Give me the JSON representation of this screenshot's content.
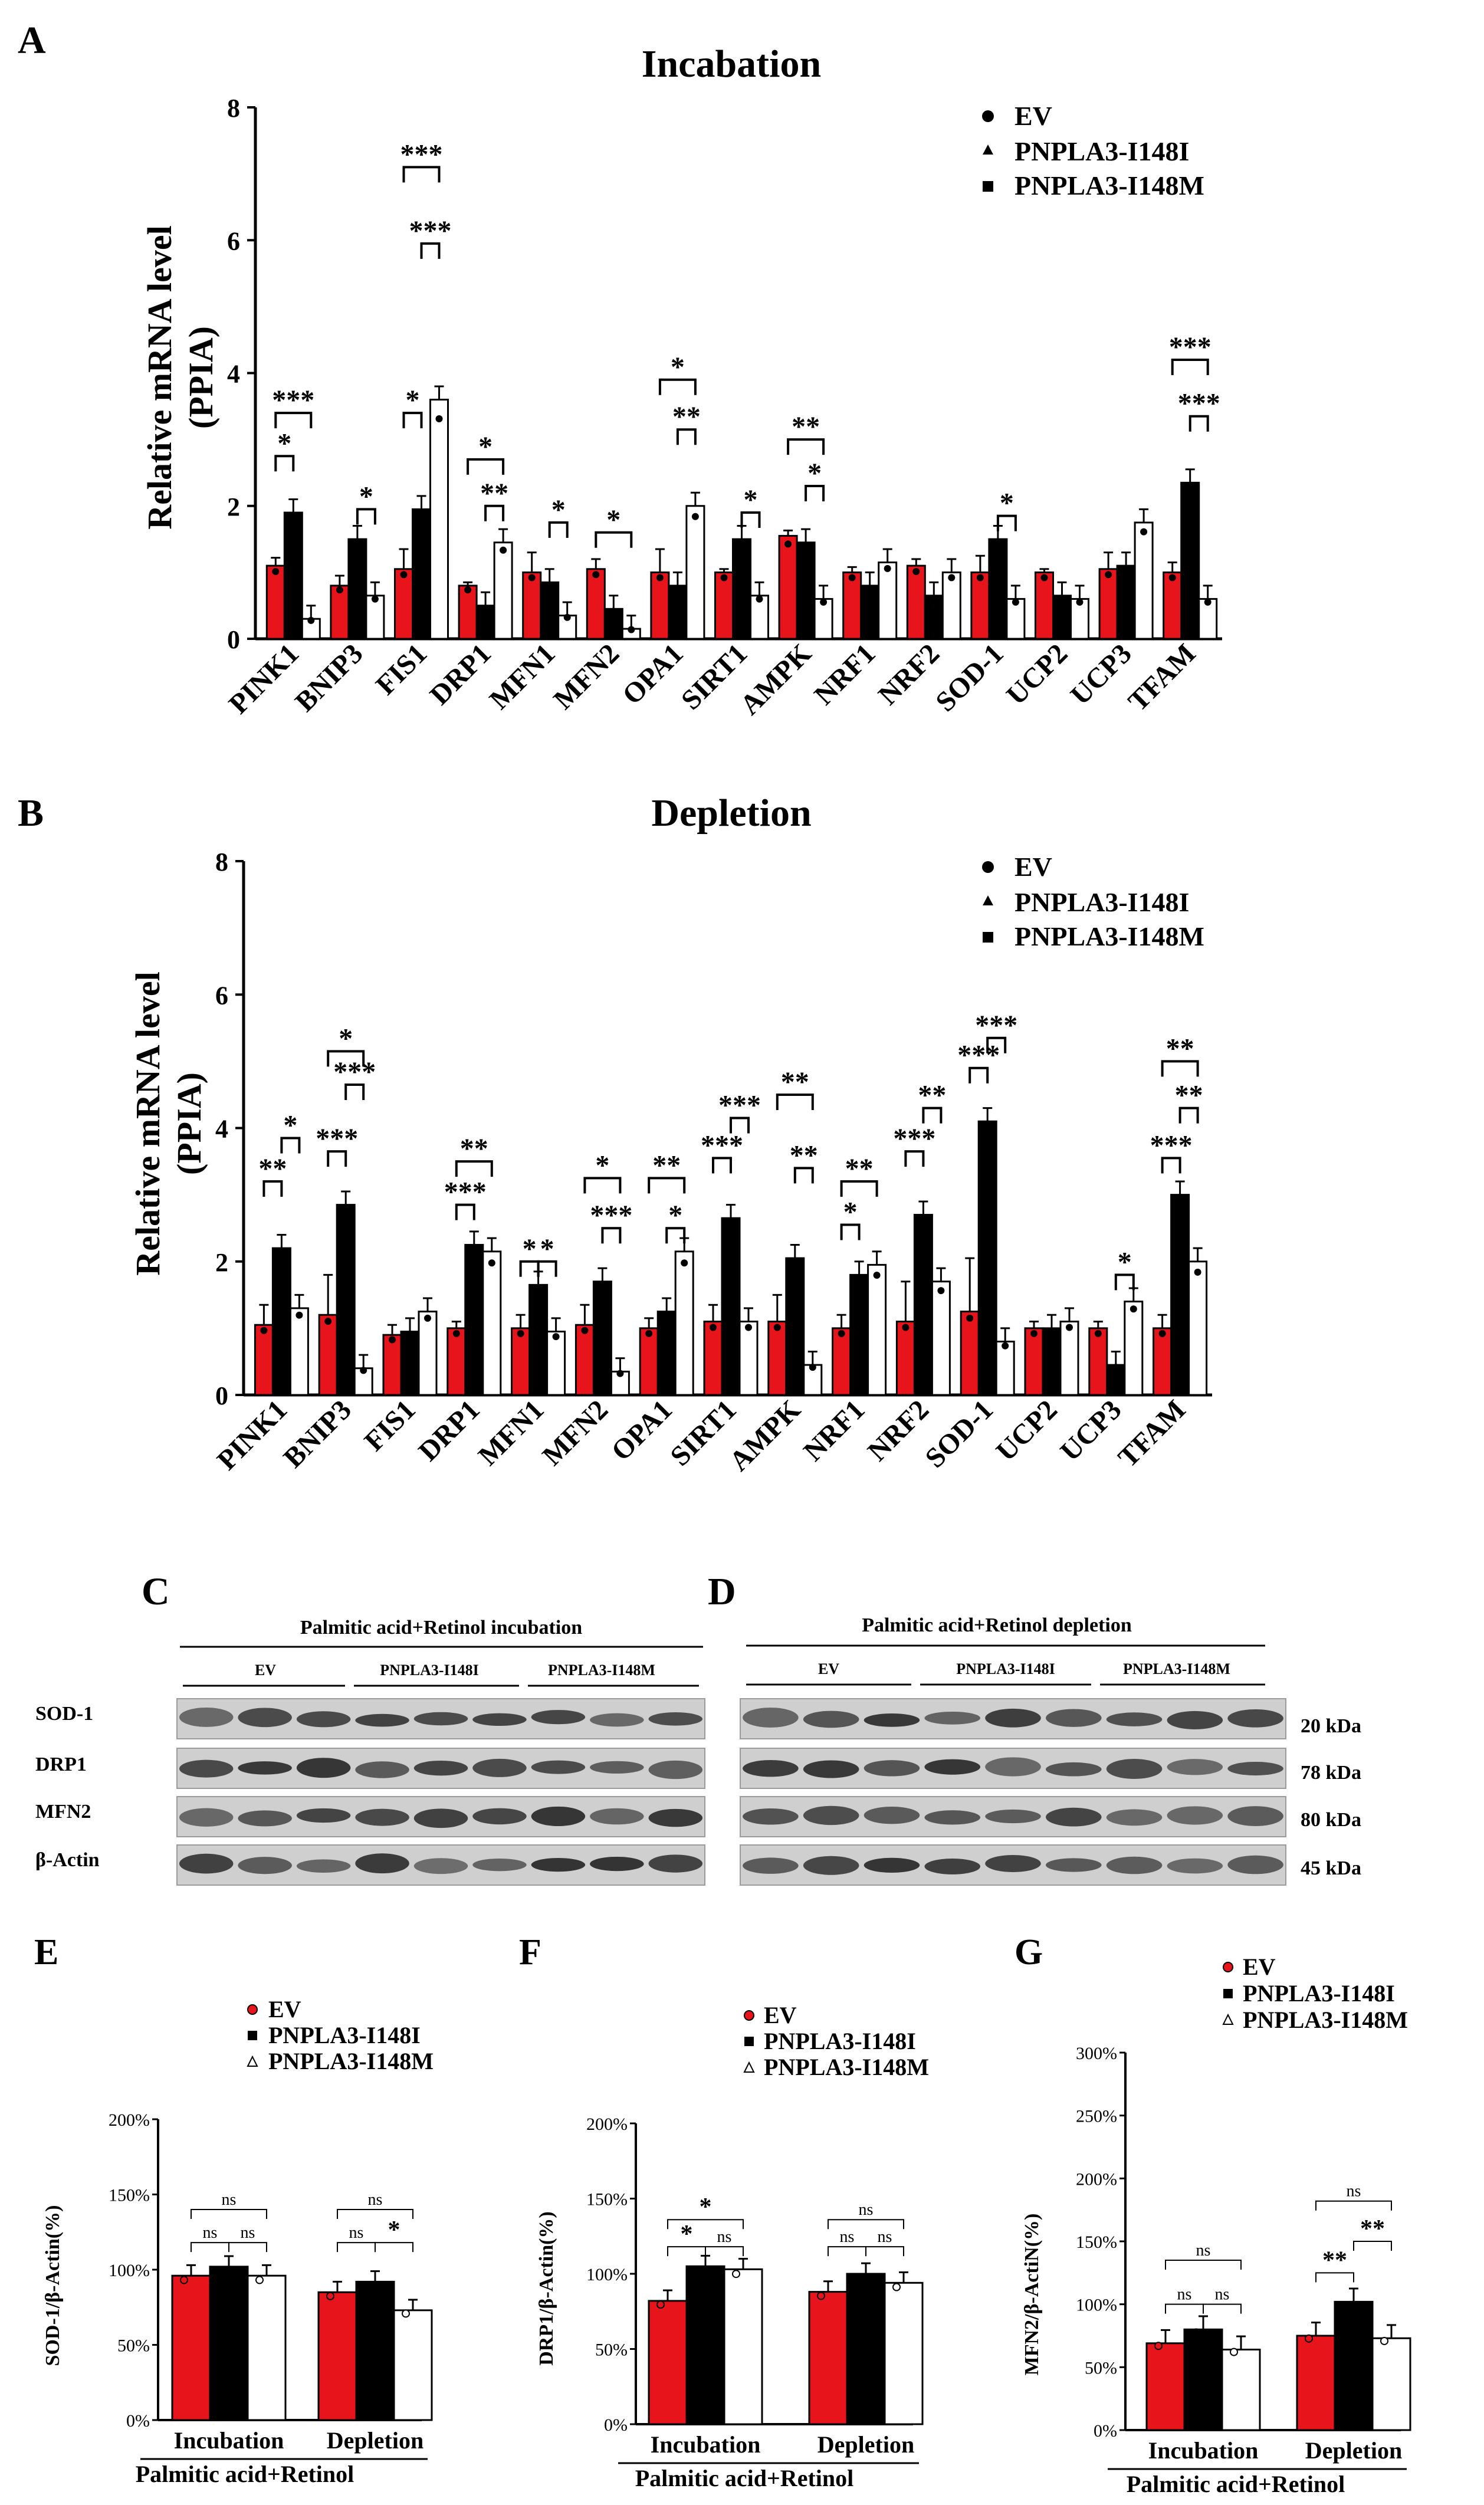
{
  "panel_letters": {
    "A": "A",
    "B": "B",
    "C": "C",
    "D": "D",
    "E": "E",
    "F": "F",
    "G": "G"
  },
  "legend_labels": [
    "EV",
    "PNPLA3-I148I",
    "PNPLA3-I148M"
  ],
  "colors": {
    "ev": "#e8141b",
    "i148i": "#000000",
    "i148m": "#ffffff",
    "axis": "#000000"
  },
  "chart_data": [
    {
      "id": "A",
      "type": "bar",
      "title": "Incabation",
      "ylabel_line1": "Relative mRNA level",
      "ylabel_line2": "(PPIA)",
      "ylim": [
        0,
        8
      ],
      "yticks": [
        0,
        2,
        4,
        6,
        8
      ],
      "categories": [
        "PINK1",
        "BNIP3",
        "FIS1",
        "DRP1",
        "MFN1",
        "MFN2",
        "OPA1",
        "SIRT1",
        "AMPK",
        "NRF1",
        "NRF2",
        "SOD-1",
        "UCP2",
        "UCP3",
        "TFAM"
      ],
      "series": [
        {
          "name": "EV",
          "values": [
            1.1,
            0.8,
            1.05,
            0.8,
            1.0,
            1.05,
            1.0,
            1.0,
            1.55,
            1.0,
            1.1,
            1.0,
            1.0,
            1.05,
            1.0
          ],
          "errors": [
            0.12,
            0.15,
            0.3,
            0.05,
            0.3,
            0.15,
            0.35,
            0.05,
            0.08,
            0.08,
            0.1,
            0.25,
            0.05,
            0.25,
            0.15
          ]
        },
        {
          "name": "PNPLA3-I148I",
          "values": [
            1.9,
            1.5,
            1.95,
            0.5,
            0.85,
            0.45,
            0.8,
            1.5,
            1.45,
            0.8,
            0.65,
            1.5,
            0.65,
            1.1,
            2.35
          ]
        },
        {
          "name": "PNPLA3-I148M",
          "values": [
            0.3,
            0.65,
            3.6,
            1.45,
            0.35,
            0.15,
            2.0,
            0.65,
            0.6,
            1.15,
            1.0,
            0.6,
            0.6,
            1.75,
            0.6
          ]
        }
      ],
      "annotations": [
        {
          "text": "*",
          "cat": 0,
          "a": 0,
          "b": 1,
          "y": 2.75
        },
        {
          "text": "***",
          "cat": 0,
          "a": 0,
          "b": 2,
          "y": 3.4
        },
        {
          "text": "*",
          "cat": 1,
          "a": 1,
          "b": 2,
          "y": 1.95
        },
        {
          "text": "*",
          "cat": 2,
          "a": 0,
          "b": 1,
          "y": 3.4
        },
        {
          "text": "***",
          "cat": 2,
          "a": 0,
          "b": 2,
          "y": 7.1
        },
        {
          "text": "***",
          "cat": 2,
          "a": 1,
          "b": 2,
          "y": 5.95
        },
        {
          "text": "*",
          "cat": 3,
          "a": 0,
          "b": 2,
          "y": 2.7
        },
        {
          "text": "**",
          "cat": 3,
          "a": 1,
          "b": 2,
          "y": 2.0
        },
        {
          "text": "*",
          "cat": 4,
          "a": 1,
          "b": 2,
          "y": 1.75
        },
        {
          "text": "*",
          "cat": 5,
          "a": 0,
          "b": 2,
          "y": 1.6
        },
        {
          "text": "*",
          "cat": 6,
          "a": 0,
          "b": 2,
          "y": 3.9
        },
        {
          "text": "**",
          "cat": 6,
          "a": 1,
          "b": 2,
          "y": 3.15
        },
        {
          "text": "*",
          "cat": 7,
          "a": 1,
          "b": 2,
          "y": 1.9
        },
        {
          "text": "**",
          "cat": 8,
          "a": 0,
          "b": 2,
          "y": 3.0
        },
        {
          "text": "*",
          "cat": 8,
          "a": 1,
          "b": 2,
          "y": 2.3
        },
        {
          "text": "*",
          "cat": 11,
          "a": 1,
          "b": 2,
          "y": 1.85
        },
        {
          "text": "***",
          "cat": 14,
          "a": 0,
          "b": 2,
          "y": 4.2
        },
        {
          "text": "***",
          "cat": 14,
          "a": 1,
          "b": 2,
          "y": 3.35
        }
      ]
    },
    {
      "id": "B",
      "type": "bar",
      "title": "Depletion",
      "ylabel_line1": "Relative mRNA level",
      "ylabel_line2": "(PPIA)",
      "ylim": [
        0,
        8
      ],
      "yticks": [
        0,
        2,
        4,
        6,
        8
      ],
      "categories": [
        "PINK1",
        "BNIP3",
        "FIS1",
        "DRP1",
        "MFN1",
        "MFN2",
        "OPA1",
        "SIRT1",
        "AMPK",
        "NRF1",
        "NRF2",
        "SOD-1",
        "UCP2",
        "UCP3",
        "TFAM"
      ],
      "series": [
        {
          "name": "EV",
          "values": [
            1.05,
            1.2,
            0.9,
            1.0,
            1.0,
            1.05,
            1.0,
            1.1,
            1.1,
            1.0,
            1.1,
            1.25,
            1.0,
            1.0,
            1.0
          ],
          "errors": [
            0.3,
            0.6,
            0.15,
            0.1,
            0.2,
            0.3,
            0.15,
            0.25,
            0.4,
            0.2,
            0.6,
            0.8,
            0.1,
            0.1,
            0.2
          ]
        },
        {
          "name": "PNPLA3-I148I",
          "values": [
            2.2,
            2.85,
            0.95,
            2.25,
            1.65,
            1.7,
            1.25,
            2.65,
            2.05,
            1.8,
            2.7,
            4.1,
            1.0,
            0.45,
            3.0
          ]
        },
        {
          "name": "PNPLA3-I148M",
          "values": [
            1.3,
            0.4,
            1.25,
            2.15,
            0.95,
            0.35,
            2.15,
            1.1,
            0.45,
            1.95,
            1.7,
            0.8,
            1.1,
            1.4,
            2.0
          ]
        }
      ],
      "annotations": [
        {
          "text": "**",
          "cat": 0,
          "a": 0,
          "b": 1,
          "y": 3.2
        },
        {
          "text": "*",
          "cat": 0,
          "a": 1,
          "b": 2,
          "y": 3.85
        },
        {
          "text": "***",
          "cat": 1,
          "a": 0,
          "b": 1,
          "y": 3.65
        },
        {
          "text": "***",
          "cat": 1,
          "a": 1,
          "b": 2,
          "y": 4.65
        },
        {
          "text": "*",
          "cat": 1,
          "a": 0,
          "b": 2,
          "y": 5.15
        },
        {
          "text": "***",
          "cat": 3,
          "a": 0,
          "b": 1,
          "y": 2.85
        },
        {
          "text": "**",
          "cat": 3,
          "a": 0,
          "b": 2,
          "y": 3.5
        },
        {
          "text": "*",
          "cat": 4,
          "a": 0,
          "b": 1,
          "y": 2.0
        },
        {
          "text": "*",
          "cat": 4,
          "a": 1,
          "b": 2,
          "y": 2.0
        },
        {
          "text": "***",
          "cat": 5,
          "a": 1,
          "b": 2,
          "y": 2.5
        },
        {
          "text": "*",
          "cat": 5,
          "a": 0,
          "b": 2,
          "y": 3.25
        },
        {
          "text": "**",
          "cat": 6,
          "a": 0,
          "b": 2,
          "y": 3.25
        },
        {
          "text": "*",
          "cat": 6,
          "a": 1,
          "b": 2,
          "y": 2.5
        },
        {
          "text": "***",
          "cat": 7,
          "a": 0,
          "b": 1,
          "y": 3.55
        },
        {
          "text": "***",
          "cat": 7,
          "a": 1,
          "b": 2,
          "y": 4.15
        },
        {
          "text": "**",
          "cat": 8,
          "a": 0,
          "b": 2,
          "y": 4.5
        },
        {
          "text": "**",
          "cat": 8,
          "a": 1,
          "b": 2,
          "y": 3.4
        },
        {
          "text": "*",
          "cat": 9,
          "a": 0,
          "b": 1,
          "y": 2.55
        },
        {
          "text": "**",
          "cat": 9,
          "a": 0,
          "b": 2,
          "y": 3.2
        },
        {
          "text": "***",
          "cat": 10,
          "a": 0,
          "b": 1,
          "y": 3.65
        },
        {
          "text": "**",
          "cat": 10,
          "a": 1,
          "b": 2,
          "y": 4.3
        },
        {
          "text": "***",
          "cat": 11,
          "a": 0,
          "b": 1,
          "y": 4.9
        },
        {
          "text": "***",
          "cat": 11,
          "a": 1,
          "b": 2,
          "y": 5.35
        },
        {
          "text": "*",
          "cat": 13,
          "a": 1,
          "b": 2,
          "y": 1.8
        },
        {
          "text": "***",
          "cat": 14,
          "a": 0,
          "b": 1,
          "y": 3.55
        },
        {
          "text": "**",
          "cat": 14,
          "a": 1,
          "b": 2,
          "y": 4.3
        },
        {
          "text": "**",
          "cat": 14,
          "a": 0,
          "b": 2,
          "y": 5.0
        }
      ]
    },
    {
      "id": "E",
      "type": "bar",
      "ylabel": "SOD-1/β-Actin(%)",
      "ylim": [
        0,
        200
      ],
      "yticks": [
        "0%",
        "50%",
        "100%",
        "150%",
        "200%"
      ],
      "tick_values": [
        0,
        50,
        100,
        150,
        200
      ],
      "categories": [
        "Incubation",
        "Depletion"
      ],
      "xlabel": "Palmitic acid+Retinol",
      "series": [
        {
          "name": "EV",
          "values": [
            96,
            85
          ]
        },
        {
          "name": "PNPLA3-I148I",
          "values": [
            102,
            92
          ]
        },
        {
          "name": "PNPLA3-I148M",
          "values": [
            96,
            73
          ]
        }
      ],
      "annotations": [
        {
          "text": "ns",
          "cat": 0,
          "a": 0,
          "b": 1,
          "y": 118
        },
        {
          "text": "ns",
          "cat": 0,
          "a": 1,
          "b": 2,
          "y": 118
        },
        {
          "text": "ns",
          "cat": 0,
          "a": 0,
          "b": 2,
          "y": 140
        },
        {
          "text": "ns",
          "cat": 1,
          "a": 0,
          "b": 1,
          "y": 118
        },
        {
          "text": "*",
          "cat": 1,
          "a": 1,
          "b": 2,
          "y": 118
        },
        {
          "text": "ns",
          "cat": 1,
          "a": 0,
          "b": 2,
          "y": 140
        }
      ]
    },
    {
      "id": "F",
      "type": "bar",
      "ylabel": "DRP1/β-Actin(%)",
      "ylim": [
        0,
        200
      ],
      "yticks": [
        "0%",
        "50%",
        "100%",
        "150%",
        "200%"
      ],
      "tick_values": [
        0,
        50,
        100,
        150,
        200
      ],
      "categories": [
        "Incubation",
        "Depletion"
      ],
      "xlabel": "Palmitic acid+Retinol",
      "series": [
        {
          "name": "EV",
          "values": [
            82,
            88
          ]
        },
        {
          "name": "PNPLA3-I148I",
          "values": [
            105,
            100
          ]
        },
        {
          "name": "PNPLA3-I148M",
          "values": [
            103,
            94
          ]
        }
      ],
      "annotations": [
        {
          "text": "*",
          "cat": 0,
          "a": 0,
          "b": 1,
          "y": 118
        },
        {
          "text": "ns",
          "cat": 0,
          "a": 1,
          "b": 2,
          "y": 118
        },
        {
          "text": "*",
          "cat": 0,
          "a": 0,
          "b": 2,
          "y": 136
        },
        {
          "text": "ns",
          "cat": 1,
          "a": 0,
          "b": 1,
          "y": 118
        },
        {
          "text": "ns",
          "cat": 1,
          "a": 1,
          "b": 2,
          "y": 118
        },
        {
          "text": "ns",
          "cat": 1,
          "a": 0,
          "b": 2,
          "y": 136
        }
      ]
    },
    {
      "id": "G",
      "type": "bar",
      "ylabel": "MFN2/β-ActiN(%)",
      "ylim": [
        0,
        300
      ],
      "yticks": [
        "0%",
        "50%",
        "100%",
        "150%",
        "200%",
        "250%",
        "300%"
      ],
      "tick_values": [
        0,
        50,
        100,
        150,
        200,
        250,
        300
      ],
      "categories": [
        "Incubation",
        "Depletion"
      ],
      "xlabel": "Palmitic acid+Retinol",
      "series": [
        {
          "name": "EV",
          "values": [
            69,
            75
          ]
        },
        {
          "name": "PNPLA3-I148I",
          "values": [
            80,
            102
          ]
        },
        {
          "name": "PNPLA3-I148M",
          "values": [
            64,
            73
          ]
        }
      ],
      "annotations": [
        {
          "text": "ns",
          "cat": 0,
          "a": 0,
          "b": 1,
          "y": 100
        },
        {
          "text": "ns",
          "cat": 0,
          "a": 1,
          "b": 2,
          "y": 100
        },
        {
          "text": "ns",
          "cat": 0,
          "a": 0,
          "b": 2,
          "y": 135
        },
        {
          "text": "**",
          "cat": 1,
          "a": 0,
          "b": 1,
          "y": 125
        },
        {
          "text": "**",
          "cat": 1,
          "a": 1,
          "b": 2,
          "y": 150
        },
        {
          "text": "ns",
          "cat": 1,
          "a": 0,
          "b": 2,
          "y": 182
        }
      ]
    }
  ],
  "blots": [
    {
      "id": "C",
      "title": "Palmitic acid+Retinol incubation",
      "groups": [
        "EV",
        "PNPLA3-I148I",
        "PNPLA3-I148M"
      ],
      "rows": [
        "SOD-1",
        "DRP1",
        "MFN2",
        "β-Actin"
      ]
    },
    {
      "id": "D",
      "title": "Palmitic acid+Retinol depletion",
      "groups": [
        "EV",
        "PNPLA3-I148I",
        "PNPLA3-I148M"
      ],
      "sizes": [
        "20 kDa",
        "78 kDa",
        "80 kDa",
        "45 kDa"
      ]
    }
  ]
}
